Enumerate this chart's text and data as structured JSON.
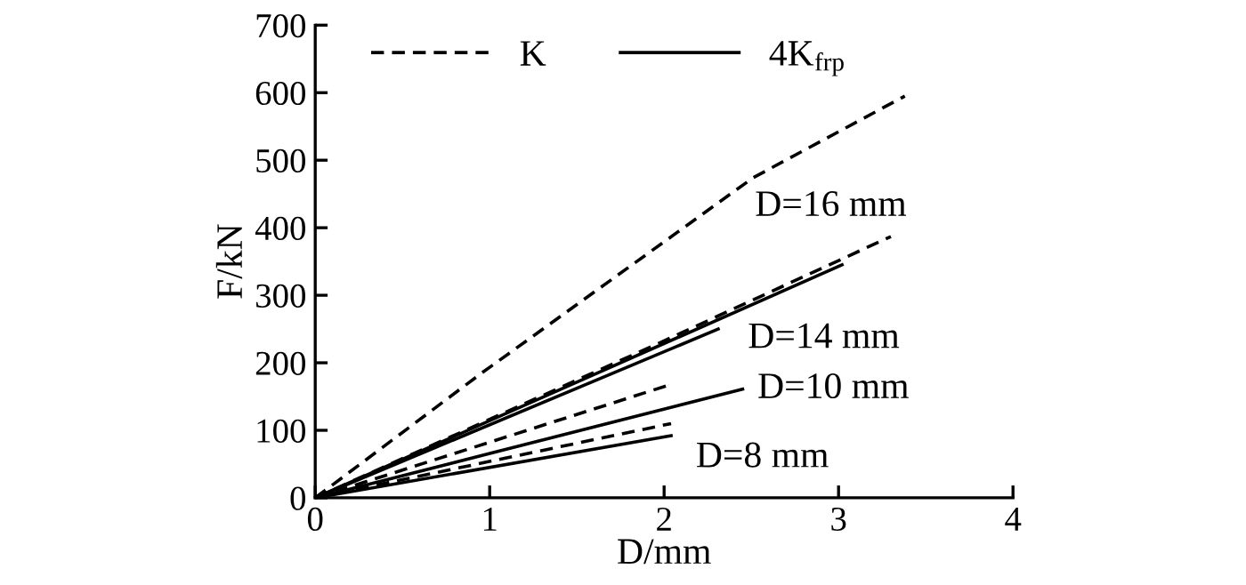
{
  "chart_data": {
    "type": "line",
    "xlabel": "D/mm",
    "ylabel": "F/kN",
    "xlim": [
      0,
      4
    ],
    "ylim": [
      0,
      700
    ],
    "xticks": [
      0,
      1,
      2,
      3,
      4
    ],
    "yticks": [
      0,
      100,
      200,
      300,
      400,
      500,
      600,
      700
    ],
    "grid": false,
    "legend": "top",
    "marker": "none",
    "series": [
      {
        "name": "K",
        "color": "#000000",
        "line_style": "dashed",
        "x": [
          0,
          0.95,
          2.51,
          3.38
        ],
        "values": [
          0,
          184,
          474,
          595
        ]
      },
      {
        "name": "4K$_{frp}$",
        "color": "#000000",
        "line_style": "solid",
        "x": [
          0,
          3.02
        ],
        "values": [
          0,
          345
        ]
      },
      {
        "color": "#000000",
        "line_style": "dashed",
        "x": [
          0,
          1.97,
          3.3
        ],
        "values": [
          0,
          229,
          387
        ]
      },
      {
        "color": "#000000",
        "line_style": "solid",
        "x": [
          0,
          2.31
        ],
        "values": [
          0,
          250
        ]
      },
      {
        "color": "#000000",
        "line_style": "dashed",
        "x": [
          0,
          2.04
        ],
        "values": [
          0,
          168
        ]
      },
      {
        "color": "#000000",
        "line_style": "solid",
        "x": [
          0,
          2.45
        ],
        "values": [
          0,
          161
        ]
      },
      {
        "color": "#000000",
        "line_style": "dashed",
        "x": [
          0,
          2.04
        ],
        "values": [
          0,
          110
        ]
      },
      {
        "color": "#000000",
        "line_style": "solid",
        "x": [
          0,
          2.04
        ],
        "values": [
          0,
          92
        ]
      }
    ],
    "annotations": [
      "D=16 mm",
      "D=14 mm",
      "D=10 mm",
      "D=8 mm"
    ]
  }
}
